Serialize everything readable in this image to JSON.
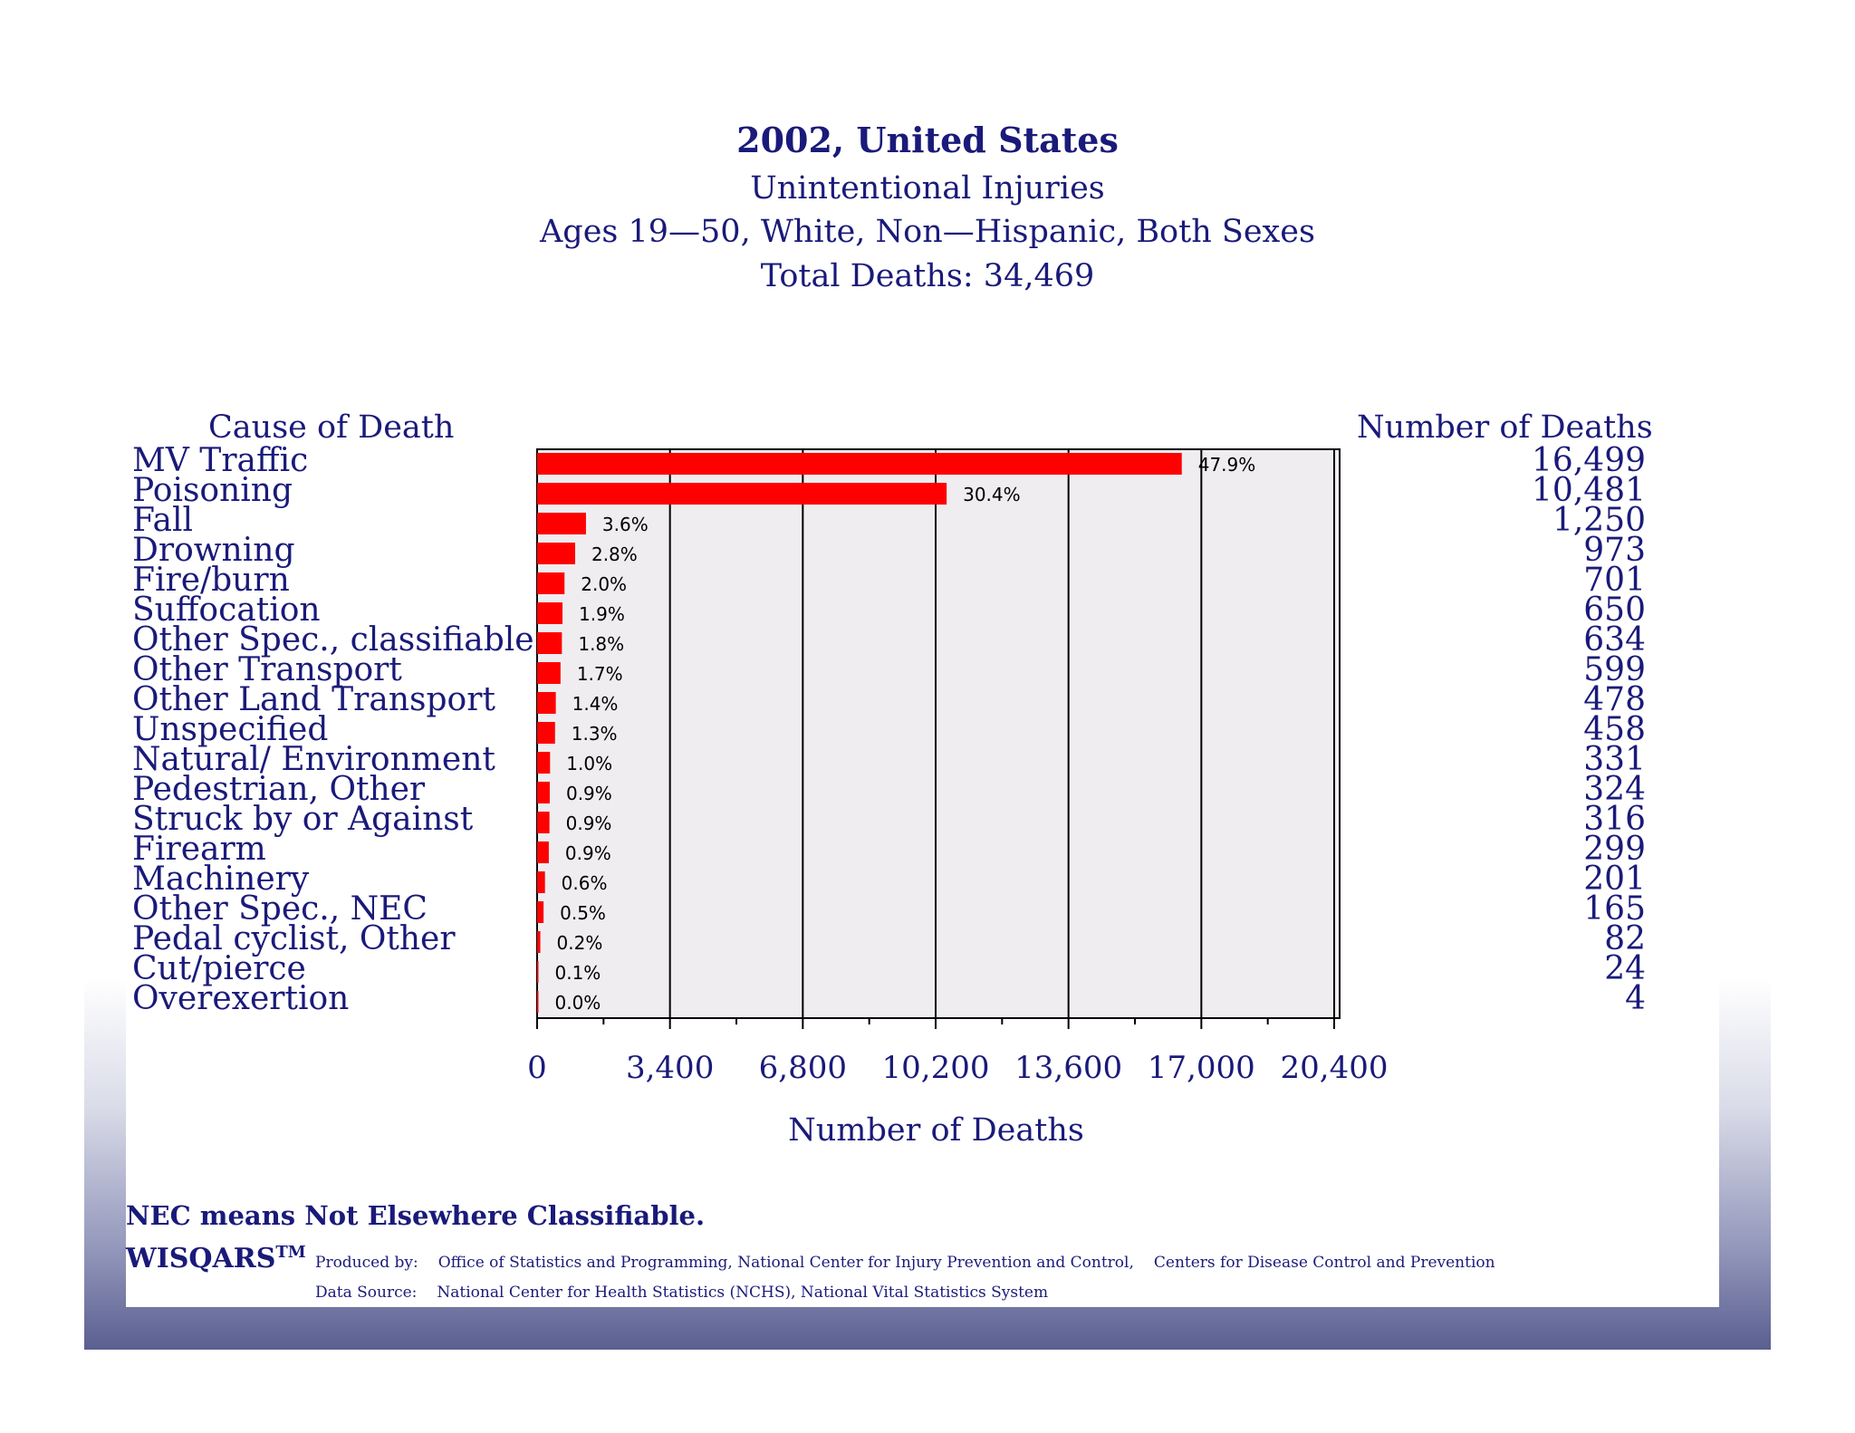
{
  "colors": {
    "bar": "#ff0000",
    "text": "#1a1a7a",
    "plot_bg": "#efedf0"
  },
  "header": {
    "title": "2002, United States",
    "subtitle1": "Unintentional Injuries",
    "subtitle2": "Ages 19—50, White, Non—Hispanic, Both Sexes",
    "subtitle3": "Total Deaths: 34,469"
  },
  "columns": {
    "cause_header": "Cause of Death",
    "count_header": "Number of Deaths"
  },
  "chart_data": {
    "type": "bar",
    "orientation": "horizontal",
    "categories": [
      "MV Traffic",
      "Poisoning",
      "Fall",
      "Drowning",
      "Fire/burn",
      "Suffocation",
      "Other Spec., classifiable",
      "Other Transport",
      "Other Land Transport",
      "Unspecified",
      "Natural/ Environment",
      "Pedestrian, Other",
      "Struck by or Against",
      "Firearm",
      "Machinery",
      "Other Spec., NEC",
      "Pedal cyclist, Other",
      "Cut/pierce",
      "Overexertion"
    ],
    "values": [
      16499,
      10481,
      1250,
      973,
      701,
      650,
      634,
      599,
      478,
      458,
      331,
      324,
      316,
      299,
      201,
      165,
      82,
      24,
      4
    ],
    "value_labels": [
      "16,499",
      "10,481",
      "1,250",
      "973",
      "701",
      "650",
      "634",
      "599",
      "478",
      "458",
      "331",
      "324",
      "316",
      "299",
      "201",
      "165",
      "82",
      "24",
      "4"
    ],
    "percent_labels": [
      "47.9%",
      "30.4%",
      "3.6%",
      "2.8%",
      "2.0%",
      "1.9%",
      "1.8%",
      "1.7%",
      "1.4%",
      "1.3%",
      "1.0%",
      "0.9%",
      "0.9%",
      "0.9%",
      "0.6%",
      "0.5%",
      "0.2%",
      "0.1%",
      "0.0%"
    ],
    "xlim": [
      0,
      20400
    ],
    "xticks": [
      0,
      3400,
      6800,
      10200,
      13600,
      17000,
      20400
    ],
    "xtick_labels": [
      "0",
      "3,400",
      "6,800",
      "10,200",
      "13,600",
      "17,000",
      "20,400"
    ],
    "xlabel": "Number of Deaths",
    "grid": true
  },
  "footer": {
    "footnote": "NEC means Not Elsewhere Classifiable.",
    "brand": "WISQARS",
    "brand_tm": "TM",
    "produced_label": "Produced by:",
    "produced_by": "Office of Statistics and Programming, National Center for Injury Prevention and Control,",
    "produced_by_2": "Centers for Disease Control and Prevention",
    "source_label": "Data Source:",
    "source": "National Center for Health Statistics (NCHS), National Vital Statistics System"
  }
}
